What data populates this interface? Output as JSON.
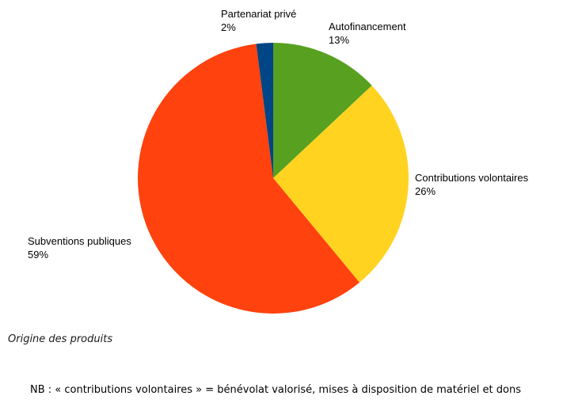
{
  "chart_data": {
    "type": "pie",
    "start_angle_deg": 0,
    "direction": "clockwise",
    "slices": [
      {
        "label": "Autofinancement",
        "percent_label": "13%",
        "value": 13,
        "color": "#57a020"
      },
      {
        "label": "Contributions volontaires",
        "percent_label": "26%",
        "value": 26,
        "color": "#ffd320"
      },
      {
        "label": "Subventions publiques",
        "percent_label": "59%",
        "value": 59,
        "color": "#ff420e"
      },
      {
        "label": "Partenariat privé",
        "percent_label": "2%",
        "value": 2,
        "color": "#004586"
      }
    ],
    "legend": "none (labels beside slices)"
  },
  "caption": "Origine des produits",
  "note": "NB : « contributions volontaires » = bénévolat valorisé, mises à disposition de matériel et dons"
}
